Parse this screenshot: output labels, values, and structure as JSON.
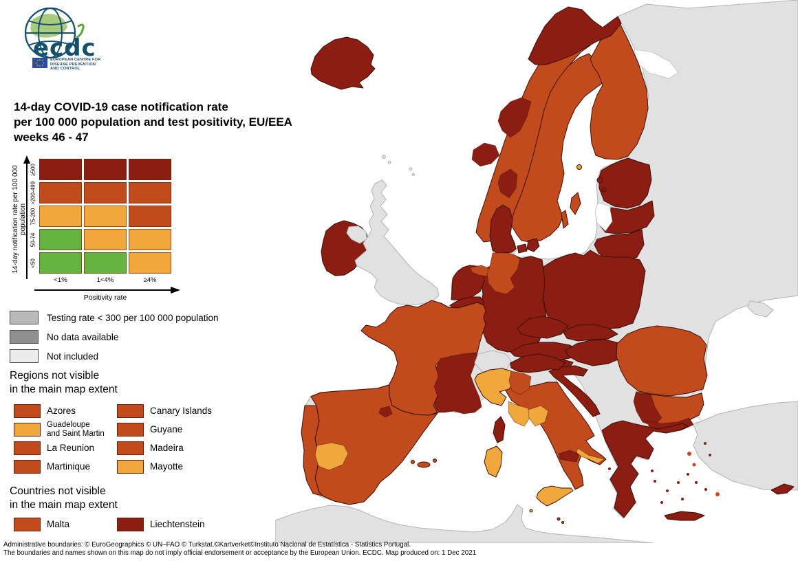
{
  "logo": {
    "brand": "ecdc",
    "org_lines": [
      "EUROPEAN CENTRE FOR",
      "DISEASE PREVENTION",
      "AND CONTROL"
    ]
  },
  "title": {
    "line1": "14-day COVID-19 case notification rate",
    "line2": "per 100 000 population and test positivity, EU/EEA",
    "line3": "weeks 46 - 47"
  },
  "matrix": {
    "y_axis_label": "14-day notification rate per 100 000 population",
    "x_axis_label": "Positivity rate",
    "row_labels": [
      "≥500",
      ">200-499",
      "75-200",
      "50-74",
      "<50"
    ],
    "col_labels": [
      "<1%",
      "1<4%",
      "≥4%"
    ],
    "cells": [
      [
        "dark_red",
        "dark_red",
        "dark_red"
      ],
      [
        "brick_red",
        "brick_red",
        "brick_red"
      ],
      [
        "orange",
        "orange",
        "brick_red"
      ],
      [
        "green",
        "orange",
        "orange"
      ],
      [
        "green",
        "green",
        "orange"
      ]
    ]
  },
  "status_legend": [
    {
      "label": "Testing rate < 300 per 100 000 population",
      "color": "testing_gray"
    },
    {
      "label": "No data available",
      "color": "nodata_gray"
    },
    {
      "label": "Not included",
      "color": "notincluded_gray"
    }
  ],
  "regions_section": {
    "heading_line1": "Regions not visible",
    "heading_line2": "in the main map extent",
    "items": [
      {
        "label": "Azores",
        "color": "brick_red"
      },
      {
        "label": "Canary Islands",
        "color": "brick_red"
      },
      {
        "label": "Guadeloupe\nand Saint Martin",
        "color": "orange",
        "small": true
      },
      {
        "label": "Guyane",
        "color": "brick_red"
      },
      {
        "label": "La Reunion",
        "color": "brick_red"
      },
      {
        "label": "Madeira",
        "color": "brick_red"
      },
      {
        "label": "Martinique",
        "color": "brick_red"
      },
      {
        "label": "Mayotte",
        "color": "orange"
      }
    ]
  },
  "countries_section": {
    "heading_line1": "Countries not visible",
    "heading_line2": "in the main map extent",
    "items": [
      {
        "label": "Malta",
        "color": "brick_red"
      },
      {
        "label": "Liechtenstein",
        "color": "dark_red"
      }
    ]
  },
  "footer": {
    "line1": "Administrative boundaries: © EuroGeographics © UN–FAO © Turkstat.©Kartverket©Instituto Nacional de Estatística - Statistics Portugal.",
    "line2": "The boundaries and names shown on this map do not imply official endorsement or acceptance by the European Union. ECDC. Map produced on: 1 Dec 2021"
  },
  "palette": {
    "dark_red": "#8c1d12",
    "brick_red": "#c24b1e",
    "orange": "#f0a73c",
    "green": "#67b33f",
    "testing_gray": "#b9b9b9",
    "nodata_gray": "#8f8f8f",
    "notincluded_gray": "#ececec",
    "map_gray": "#e1e1e1",
    "sea": "#ffffff",
    "logo_green": "#a9cb7f",
    "logo_teal": "#15506b",
    "eu_blue": "#2b4b9b",
    "eu_star_yellow": "#ffcc00"
  },
  "map": {
    "regions": {
      "mainland-europe": "map_gray",
      "north-africa": "map_gray",
      "great-britain": "map_gray",
      "northern-ireland": "map_gray",
      "switzerland": "map_gray",
      "crimea": "map_gray",
      "faroe-islands": "map_gray",
      "shetland-islands": "map_gray",
      "white-sea": "sea",
      "marmara-sea": "sea",
      "gulf-of-riga": "sea",
      "iceland": "dark_red",
      "ireland": "dark_red",
      "norway": "brick_red",
      "finnmark-troms": "dark_red",
      "trondelag": "dark_red",
      "more-og-romsdal": "dark_red",
      "oslo-region": "dark_red",
      "sweden": "brick_red",
      "gotland": "brick_red",
      "oland": "brick_red",
      "aland": "orange",
      "finland": "brick_red",
      "denmark": "dark_red",
      "denmark-islands": "dark_red",
      "estonia": "dark_red",
      "estonia-islands": "dark_red",
      "latvia": "dark_red",
      "lithuania": "dark_red",
      "poland": "dark_red",
      "germany": "dark_red",
      "germany-northwest": "brick_red",
      "netherlands": "dark_red",
      "netherlands-northeast": "brick_red",
      "belgium": "dark_red",
      "luxembourg": "dark_red",
      "czechia": "dark_red",
      "austria": "dark_red",
      "slovakia": "dark_red",
      "hungary": "dark_red",
      "slovenia": "dark_red",
      "croatia": "dark_red",
      "france": "brick_red",
      "france-southeast": "dark_red",
      "corsica": "dark_red",
      "spain": "brick_red",
      "portugal": "brick_red",
      "extremadura": "orange",
      "navarra": "dark_red",
      "balearic-islands": "brick_red",
      "italy-northeast": "dark_red",
      "italy-northwest": "orange",
      "lombardy": "brick_red",
      "italy-peninsula": "brick_red",
      "tuscany": "orange",
      "umbria-marche": "orange",
      "basilicata": "dark_red",
      "apulia": "orange",
      "sicily": "orange",
      "sardinia": "orange",
      "pantelleria": "orange",
      "malta-dots": "brick_red",
      "romania": "brick_red",
      "bulgaria": "brick_red",
      "bulgaria-west": "dark_red",
      "bulgaria-south": "dark_red",
      "greece": "dark_red",
      "crete": "dark_red",
      "cyprus": "dark_red",
      "aegean-islands-dark": "dark_red",
      "aegean-islands-brick": "brick_red"
    }
  }
}
